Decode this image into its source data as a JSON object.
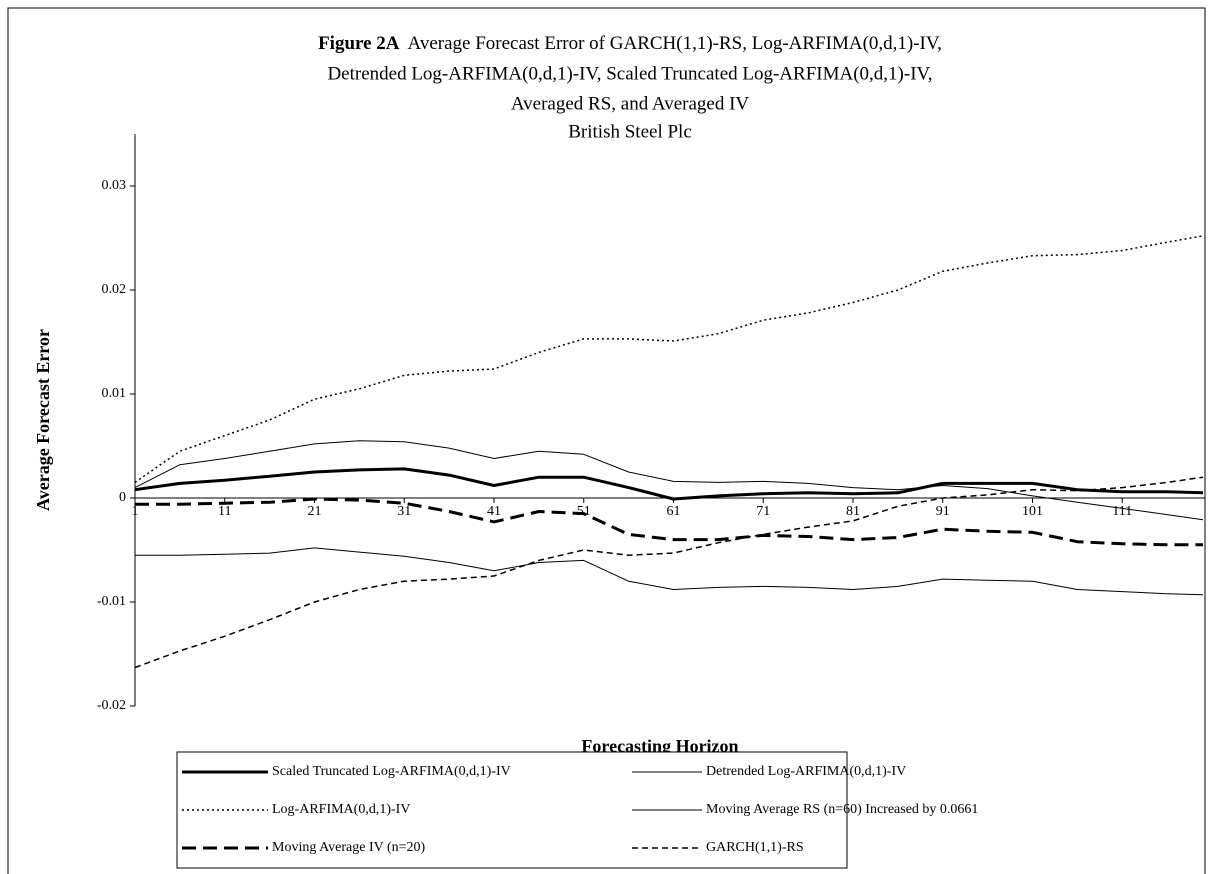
{
  "chart_data": {
    "type": "line",
    "title_label": "Figure 2A",
    "title_lines": [
      "Average Forecast Error of GARCH(1,1)-RS, Log-ARFIMA(0,d,1)-IV,",
      "Detrended Log-ARFIMA(0,d,1)-IV, Scaled Truncated Log-ARFIMA(0,d,1)-IV,",
      "Averaged RS, and Averaged IV",
      "British Steel Plc"
    ],
    "x_label": "Forecasting Horizon",
    "y_label": "Average Forecast Error",
    "x": [
      1,
      6,
      11,
      16,
      21,
      26,
      31,
      36,
      41,
      46,
      51,
      56,
      61,
      66,
      71,
      76,
      81,
      86,
      91,
      96,
      101,
      106,
      111,
      116,
      120
    ],
    "xlim": [
      1,
      120
    ],
    "xticks": [
      1,
      11,
      21,
      31,
      41,
      51,
      61,
      71,
      81,
      91,
      101,
      111
    ],
    "ylim": [
      -0.02,
      0.035
    ],
    "yticks": [
      -0.02,
      -0.01,
      0,
      0.01,
      0.02,
      0.03
    ],
    "series": [
      {
        "name": "Scaled Truncated Log-ARFIMA(0,d,1)-IV",
        "color": "#000000",
        "width": 3,
        "dash": "none",
        "values": [
          0.0008,
          0.0014,
          0.0017,
          0.0021,
          0.0025,
          0.0027,
          0.0028,
          0.0022,
          0.0012,
          0.002,
          0.002,
          0.001,
          -0.0001,
          0.0002,
          0.0004,
          0.0005,
          0.0004,
          0.0005,
          0.0014,
          0.0014,
          0.0014,
          0.0008,
          0.0006,
          0.0006,
          0.0005
        ]
      },
      {
        "name": "Detrended Log-ARFIMA(0,d,1)-IV",
        "color": "#000000",
        "width": 1,
        "dash": "none",
        "values": [
          0.001,
          0.0032,
          0.0038,
          0.0045,
          0.0052,
          0.0055,
          0.0054,
          0.0048,
          0.0038,
          0.0045,
          0.0042,
          0.0025,
          0.0016,
          0.0015,
          0.0016,
          0.0014,
          0.001,
          0.0008,
          0.0012,
          0.0009,
          0.0002,
          -0.0004,
          -0.001,
          -0.0016,
          -0.0021
        ]
      },
      {
        "name": "Log-ARFIMA(0,d,1)-IV",
        "color": "#000000",
        "width": 1.5,
        "dash": "2 3",
        "values": [
          0.0015,
          0.0045,
          0.006,
          0.0075,
          0.0095,
          0.0105,
          0.0118,
          0.0122,
          0.0124,
          0.014,
          0.0153,
          0.0153,
          0.0151,
          0.0158,
          0.0171,
          0.0178,
          0.0188,
          0.02,
          0.0218,
          0.0226,
          0.0233,
          0.0234,
          0.0238,
          0.0246,
          0.0252
        ]
      },
      {
        "name": "Moving Average RS (n=60) Increased by 0.0661",
        "color": "#000000",
        "width": 1,
        "dash": "none",
        "values": [
          -0.0055,
          -0.0055,
          -0.0054,
          -0.0053,
          -0.0048,
          -0.0052,
          -0.0056,
          -0.0062,
          -0.007,
          -0.0062,
          -0.006,
          -0.008,
          -0.0088,
          -0.0086,
          -0.0085,
          -0.0086,
          -0.0088,
          -0.0085,
          -0.0078,
          -0.0079,
          -0.008,
          -0.0088,
          -0.009,
          -0.0092,
          -0.0093
        ]
      },
      {
        "name": "Moving Average IV (n=20)",
        "color": "#000000",
        "width": 3,
        "dash": "14 7",
        "values": [
          -0.0006,
          -0.0006,
          -0.0005,
          -0.0004,
          -0.0001,
          -0.0002,
          -0.0005,
          -0.0013,
          -0.0023,
          -0.0013,
          -0.0015,
          -0.0035,
          -0.004,
          -0.004,
          -0.0036,
          -0.0037,
          -0.004,
          -0.0038,
          -0.003,
          -0.0032,
          -0.0033,
          -0.0042,
          -0.0044,
          -0.0045,
          -0.0045
        ]
      },
      {
        "name": "GARCH(1,1)-RS",
        "color": "#000000",
        "width": 1.5,
        "dash": "6 4",
        "values": [
          -0.0163,
          -0.0147,
          -0.0133,
          -0.0117,
          -0.01,
          -0.0088,
          -0.008,
          -0.0078,
          -0.0075,
          -0.006,
          -0.005,
          -0.0055,
          -0.0053,
          -0.0043,
          -0.0035,
          -0.0028,
          -0.0022,
          -0.0008,
          0,
          0.0003,
          0.0008,
          0.0007,
          0.001,
          0.0015,
          0.002
        ]
      }
    ]
  }
}
